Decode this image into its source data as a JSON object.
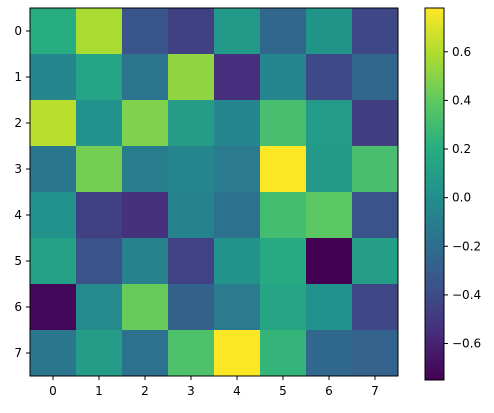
{
  "chart_data": {
    "type": "heatmap",
    "title": "",
    "xlabel": "",
    "ylabel": "",
    "x_categories": [
      "0",
      "1",
      "2",
      "3",
      "4",
      "5",
      "6",
      "7"
    ],
    "y_categories": [
      "0",
      "1",
      "2",
      "3",
      "4",
      "5",
      "6",
      "7"
    ],
    "values": [
      [
        0.2,
        0.58,
        -0.35,
        -0.46,
        0.07,
        -0.24,
        0.04,
        -0.42
      ],
      [
        -0.05,
        0.15,
        -0.16,
        0.52,
        -0.55,
        -0.05,
        -0.41,
        -0.24
      ],
      [
        0.62,
        0.02,
        0.48,
        0.09,
        -0.05,
        0.32,
        0.08,
        -0.47
      ],
      [
        -0.15,
        0.45,
        -0.11,
        -0.05,
        -0.12,
        0.78,
        0.07,
        0.32
      ],
      [
        0.02,
        -0.46,
        -0.54,
        -0.08,
        -0.18,
        0.31,
        0.39,
        -0.36
      ],
      [
        0.13,
        -0.36,
        -0.08,
        -0.45,
        0.03,
        0.18,
        -0.75,
        0.1
      ],
      [
        -0.72,
        -0.03,
        0.42,
        -0.28,
        -0.12,
        0.14,
        0.02,
        -0.43
      ],
      [
        -0.15,
        0.09,
        -0.18,
        0.34,
        0.78,
        0.25,
        -0.23,
        -0.27
      ]
    ],
    "colormap": "viridis",
    "colorbar": {
      "vmin": -0.75,
      "vmax": 0.78,
      "ticks": [
        0.6,
        0.4,
        0.2,
        0.0,
        -0.2,
        -0.4,
        -0.6
      ],
      "tick_labels": [
        "0.6",
        "0.4",
        "0.2",
        "0.0",
        "−0.2",
        "−0.4",
        "−0.6"
      ]
    }
  }
}
